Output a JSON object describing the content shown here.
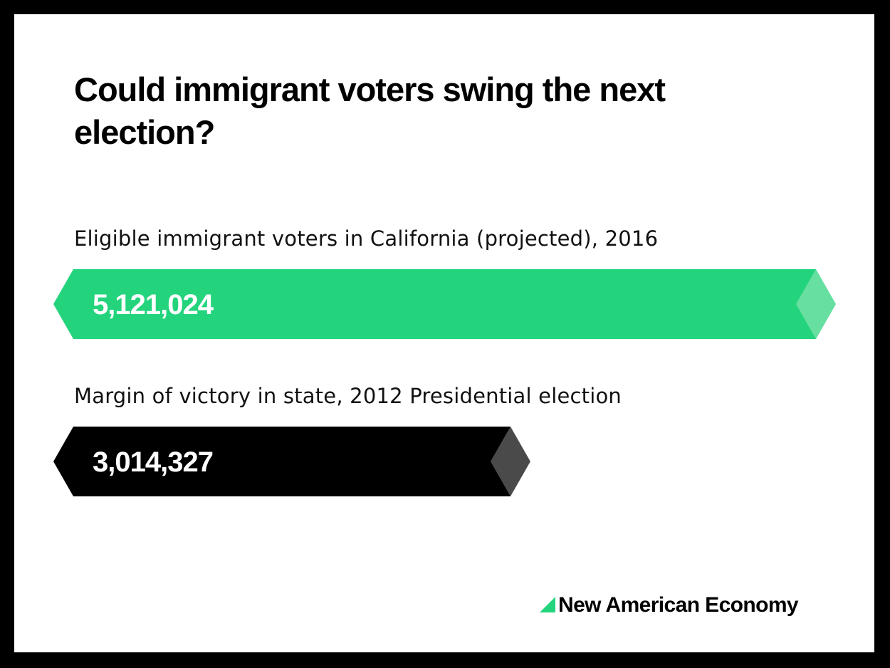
{
  "title": "Could immigrant voters swing the next election?",
  "colors": {
    "frame": "#000000",
    "background": "#ffffff",
    "accent_green": "#24d47d",
    "accent_green_light": "#66dfa0",
    "bar_black": "#000000",
    "bar_black_tip": "#4a4a4a"
  },
  "chart_data": {
    "type": "bar",
    "orientation": "horizontal",
    "categories": [
      "Eligible immigrant voters in California (projected), 2016",
      "Margin of victory in state, 2012 Presidential election"
    ],
    "values": [
      5121024,
      3014327
    ],
    "value_labels": [
      "5,121,024",
      "3,014,327"
    ],
    "bar_colors": [
      "#24d47d",
      "#000000"
    ],
    "tip_colors": [
      "#66dfa0",
      "#4a4a4a"
    ],
    "grid": false,
    "legend": "none"
  },
  "brand": {
    "name": "New American Economy",
    "mark_icon": "green-triangle-icon"
  }
}
